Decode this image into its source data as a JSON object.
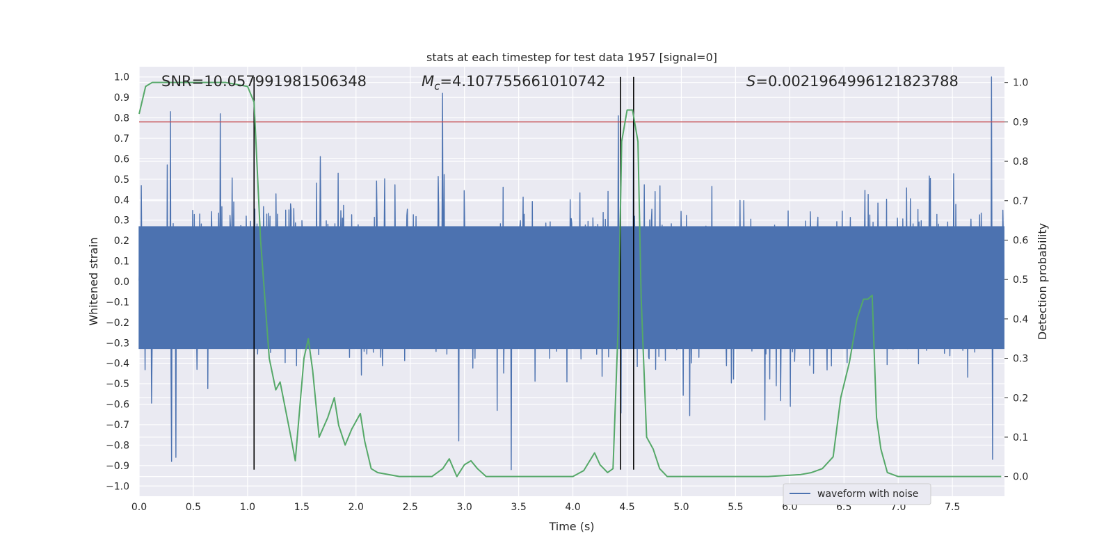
{
  "chart_data": {
    "type": "line",
    "title": "stats at each timestep for test data 1957 [signal=0]",
    "xlabel": "Time (s)",
    "ylabel": "Whitened strain",
    "y2label": "Detection probability",
    "xlim": [
      0,
      7.98
    ],
    "ylim": [
      -1.05,
      1.05
    ],
    "y2lim": [
      -0.05,
      1.04
    ],
    "x_ticks": [
      "0.0",
      "0.5",
      "1.0",
      "1.5",
      "2.0",
      "2.5",
      "3.0",
      "3.5",
      "4.0",
      "4.5",
      "5.0",
      "5.5",
      "6.0",
      "6.5",
      "7.0",
      "7.5"
    ],
    "y_ticks": [
      "1.0",
      "0.9",
      "0.8",
      "0.7",
      "0.6",
      "0.5",
      "0.4",
      "0.3",
      "0.2",
      "0.1",
      "0.0",
      "−0.1",
      "−0.2",
      "−0.3",
      "−0.4",
      "−0.5",
      "−0.6",
      "−0.7",
      "−0.8",
      "−0.9",
      "−1.0"
    ],
    "y2_ticks": [
      "1.0",
      "0.9",
      "0.8",
      "0.7",
      "0.6",
      "0.5",
      "0.4",
      "0.3",
      "0.2",
      "0.1",
      "0.0"
    ],
    "annotations": {
      "snr": "SNR=10.057991981506348",
      "mc_symbol": "M",
      "mc_sub": "c",
      "mc_value": "=4.107755661010742",
      "s_symbol": "S",
      "s_value": "=0.0021964996121823788"
    },
    "legend": {
      "label": "waveform with noise",
      "position": "lower-right"
    },
    "threshold": {
      "y2": 0.9,
      "color": "#c44e52"
    },
    "vlines_x": [
      1.06,
      4.44,
      4.56
    ],
    "waveform": {
      "name": "waveform with noise",
      "color": "#4c72b0",
      "duration_s": 7.98,
      "samples": 1600,
      "seed": 1957,
      "peaks": [
        {
          "t": 0.3,
          "v": -0.88
        },
        {
          "t": 0.34,
          "v": -0.86
        },
        {
          "t": 0.29,
          "v": 0.83
        },
        {
          "t": 0.75,
          "v": 0.82
        },
        {
          "t": 2.8,
          "v": 0.92
        },
        {
          "t": 2.95,
          "v": -0.78
        },
        {
          "t": 3.43,
          "v": -0.92
        },
        {
          "t": 4.42,
          "v": 0.81
        },
        {
          "t": 7.86,
          "v": 1.0
        },
        {
          "t": 7.87,
          "v": -0.87
        },
        {
          "t": 4.56,
          "v": 0.78
        }
      ]
    },
    "probability": {
      "name": "detection probability",
      "color": "#55a868",
      "x": [
        0.0,
        0.06,
        0.12,
        0.2,
        0.5,
        0.8,
        1.0,
        1.06,
        1.12,
        1.2,
        1.26,
        1.3,
        1.4,
        1.44,
        1.52,
        1.56,
        1.6,
        1.66,
        1.74,
        1.8,
        1.84,
        1.9,
        1.96,
        2.04,
        2.08,
        2.14,
        2.2,
        2.4,
        2.6,
        2.7,
        2.8,
        2.86,
        2.93,
        3.0,
        3.06,
        3.12,
        3.2,
        3.4,
        3.6,
        3.8,
        3.92,
        4.0,
        4.1,
        4.2,
        4.25,
        4.32,
        4.37,
        4.42,
        4.45,
        4.5,
        4.55,
        4.6,
        4.63,
        4.68,
        4.74,
        4.8,
        4.87,
        4.94,
        5.0,
        5.3,
        5.5,
        5.8,
        6.1,
        6.2,
        6.3,
        6.4,
        6.47,
        6.55,
        6.62,
        6.68,
        6.72,
        6.76,
        6.8,
        6.84,
        6.9,
        7.0,
        7.2,
        7.5,
        7.8,
        7.95
      ],
      "y": [
        0.92,
        0.99,
        1.0,
        1.0,
        1.0,
        1.0,
        0.99,
        0.95,
        0.6,
        0.3,
        0.22,
        0.24,
        0.1,
        0.04,
        0.3,
        0.35,
        0.27,
        0.1,
        0.15,
        0.2,
        0.13,
        0.08,
        0.12,
        0.16,
        0.09,
        0.02,
        0.01,
        0.0,
        0.0,
        0.0,
        0.02,
        0.045,
        0.0,
        0.03,
        0.04,
        0.02,
        0.0,
        0.0,
        0.0,
        0.0,
        0.0,
        0.0,
        0.015,
        0.06,
        0.03,
        0.01,
        0.02,
        0.4,
        0.85,
        0.93,
        0.93,
        0.85,
        0.45,
        0.1,
        0.07,
        0.02,
        0.0,
        0.0,
        0.0,
        0.0,
        0.0,
        0.0,
        0.005,
        0.01,
        0.02,
        0.05,
        0.2,
        0.29,
        0.4,
        0.45,
        0.45,
        0.46,
        0.15,
        0.07,
        0.01,
        0.0,
        0.0,
        0.0,
        0.0,
        0.0
      ]
    }
  }
}
